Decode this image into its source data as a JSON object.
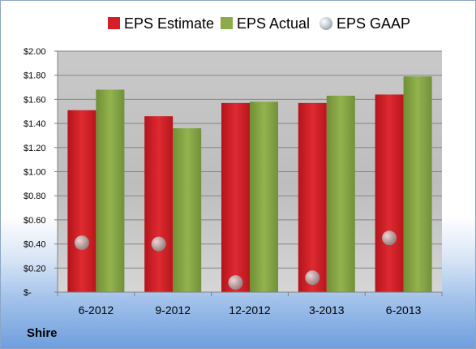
{
  "chart_data": {
    "type": "bar",
    "categories": [
      "6-2012",
      "9-2012",
      "12-2012",
      "3-2013",
      "6-2013"
    ],
    "series": [
      {
        "name": "EPS Estimate",
        "kind": "bar",
        "color": "#d41f27",
        "values": [
          1.51,
          1.46,
          1.57,
          1.57,
          1.64
        ]
      },
      {
        "name": "EPS Actual",
        "kind": "bar",
        "color": "#8cac4a",
        "values": [
          1.68,
          1.36,
          1.58,
          1.63,
          1.79
        ]
      },
      {
        "name": "EPS GAAP",
        "kind": "marker",
        "color": "#b0b0b0",
        "values": [
          0.41,
          0.4,
          0.08,
          0.12,
          0.45
        ]
      }
    ],
    "yticks": [
      "$-",
      "$0.20",
      "$0.40",
      "$0.60",
      "$0.80",
      "$1.00",
      "$1.20",
      "$1.40",
      "$1.60",
      "$1.80",
      "$2.00"
    ],
    "ylim": [
      0,
      2.0
    ],
    "grid": true,
    "legend": "top",
    "footer_label": "Shire"
  }
}
